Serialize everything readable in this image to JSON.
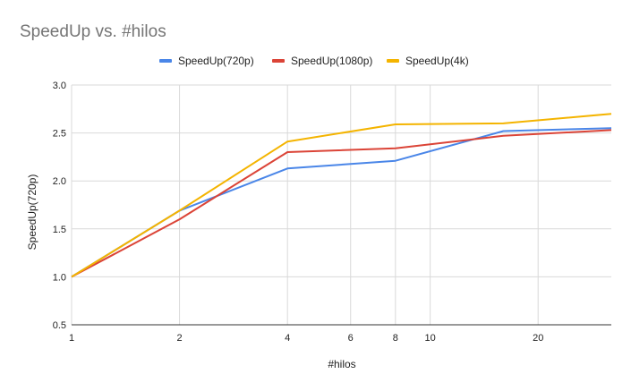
{
  "chart_data": {
    "type": "line",
    "title": "SpeedUp vs. #hilos",
    "xlabel": "#hilos",
    "ylabel": "SpeedUp(720p)",
    "x_scale": "log",
    "xlim": [
      1,
      32
    ],
    "ylim": [
      0.5,
      3.0
    ],
    "x_ticks": [
      1,
      2,
      4,
      6,
      8,
      10,
      20
    ],
    "x_tick_labels": [
      "1",
      "2",
      "4",
      "6",
      "8",
      "10",
      "20"
    ],
    "y_ticks": [
      0.5,
      1.0,
      1.5,
      2.0,
      2.5,
      3.0
    ],
    "y_tick_labels": [
      "0.5",
      "1.0",
      "1.5",
      "2.0",
      "2.5",
      "3.0"
    ],
    "grid": true,
    "legend_position": "top",
    "x": [
      1,
      2,
      4,
      8,
      16,
      32
    ],
    "series": [
      {
        "name": "SpeedUp(720p)",
        "color": "#4a86e8",
        "values": [
          1.0,
          1.69,
          2.13,
          2.21,
          2.52,
          2.55
        ]
      },
      {
        "name": "SpeedUp(1080p)",
        "color": "#db4437",
        "values": [
          1.0,
          1.6,
          2.3,
          2.34,
          2.47,
          2.53
        ]
      },
      {
        "name": "SpeedUp(4k)",
        "color": "#f4b400",
        "values": [
          1.0,
          1.69,
          2.41,
          2.59,
          2.6,
          2.7
        ]
      }
    ]
  }
}
